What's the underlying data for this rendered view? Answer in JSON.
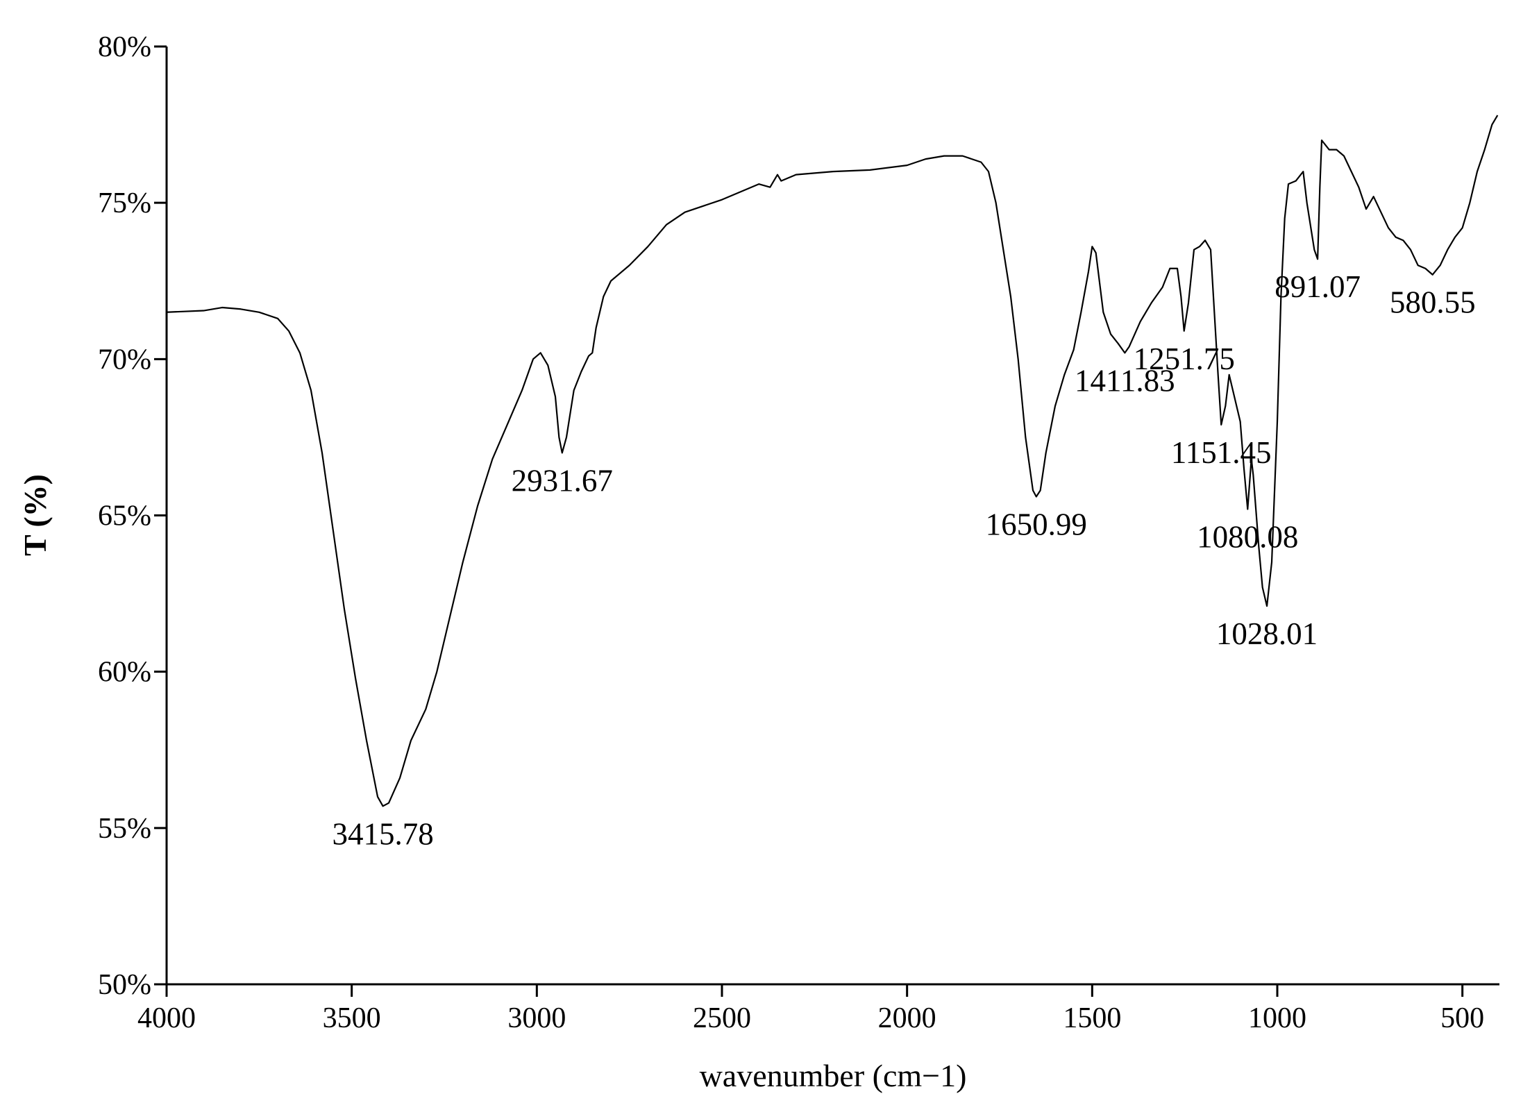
{
  "chart_data": {
    "type": "line",
    "xlabel": "wavenumber (cm−1)",
    "ylabel": "T (%)",
    "xlim": [
      4000,
      400
    ],
    "ylim": [
      50,
      80
    ],
    "xticks": [
      4000,
      3500,
      3000,
      2500,
      2000,
      1500,
      1000,
      500
    ],
    "yticks": [
      {
        "value": 50,
        "label": "50%"
      },
      {
        "value": 55,
        "label": "55%"
      },
      {
        "value": 60,
        "label": "60%"
      },
      {
        "value": 65,
        "label": "65%"
      },
      {
        "value": 70,
        "label": "70%"
      },
      {
        "value": 75,
        "label": "75%"
      },
      {
        "value": 80,
        "label": "80%"
      }
    ],
    "color": "#000000",
    "series": [
      {
        "x": [
          4000,
          3900,
          3850,
          3800,
          3750,
          3700,
          3670,
          3640,
          3610,
          3580,
          3550,
          3520,
          3490,
          3460,
          3430,
          3415.78,
          3400,
          3370,
          3340,
          3300,
          3270,
          3240,
          3200,
          3160,
          3120,
          3080,
          3040,
          3010,
          2990,
          2970,
          2950,
          2940,
          2931.67,
          2920,
          2900,
          2880,
          2860,
          2850,
          2840,
          2820,
          2800,
          2750,
          2700,
          2650,
          2600,
          2500,
          2400,
          2370,
          2350,
          2340,
          2300,
          2200,
          2100,
          2000,
          1950,
          1900,
          1850,
          1800,
          1780,
          1760,
          1740,
          1720,
          1700,
          1680,
          1660,
          1650.99,
          1640,
          1625,
          1600,
          1575,
          1550,
          1530,
          1510,
          1500,
          1490,
          1470,
          1450,
          1430,
          1411.83,
          1400,
          1370,
          1340,
          1310,
          1290,
          1270,
          1260,
          1251.75,
          1240,
          1225,
          1210,
          1195,
          1180,
          1170,
          1160,
          1151.45,
          1140,
          1130,
          1120,
          1100,
          1090,
          1080.08,
          1070,
          1065,
          1050,
          1040,
          1028.01,
          1015,
          1000,
          990,
          980,
          970,
          950,
          930,
          920,
          900,
          891.07,
          885,
          880,
          860,
          840,
          820,
          800,
          780,
          760,
          740,
          720,
          700,
          680,
          660,
          640,
          620,
          600,
          580.55,
          560,
          540,
          520,
          500,
          480,
          460,
          440,
          420,
          405
        ],
        "values": [
          71.5,
          71.55,
          71.65,
          71.6,
          71.5,
          71.3,
          70.9,
          70.2,
          69.0,
          67.0,
          64.5,
          62.0,
          59.8,
          57.8,
          56.0,
          55.7,
          55.8,
          56.6,
          57.8,
          58.8,
          60.0,
          61.5,
          63.5,
          65.3,
          66.8,
          67.9,
          69.0,
          70.0,
          70.2,
          69.8,
          68.8,
          67.5,
          67.0,
          67.5,
          69.0,
          69.6,
          70.1,
          70.2,
          71.0,
          72.0,
          72.5,
          73.0,
          73.6,
          74.3,
          74.7,
          75.1,
          75.6,
          75.5,
          75.9,
          75.7,
          75.9,
          76.0,
          76.05,
          76.2,
          76.4,
          76.5,
          76.5,
          76.3,
          76.0,
          75.0,
          73.5,
          72.0,
          70.0,
          67.5,
          65.8,
          65.6,
          65.8,
          67.0,
          68.5,
          69.5,
          70.3,
          71.5,
          72.8,
          73.6,
          73.4,
          71.5,
          70.8,
          70.5,
          70.2,
          70.4,
          71.2,
          71.8,
          72.3,
          72.9,
          72.9,
          72.0,
          70.9,
          71.8,
          73.5,
          73.6,
          73.8,
          73.5,
          71.5,
          69.5,
          67.9,
          68.5,
          69.5,
          69.0,
          68.0,
          66.5,
          65.2,
          66.8,
          66.3,
          64.0,
          62.7,
          62.1,
          63.5,
          68.0,
          72.0,
          74.5,
          75.6,
          75.7,
          76.0,
          75.0,
          73.5,
          73.2,
          75.5,
          77.0,
          76.7,
          76.7,
          76.5,
          76.0,
          75.5,
          74.8,
          75.2,
          74.7,
          74.2,
          73.9,
          73.8,
          73.5,
          73.0,
          72.9,
          72.7,
          73.0,
          73.5,
          73.9,
          74.2,
          75.0,
          76.0,
          76.7,
          77.5,
          77.8
        ]
      }
    ],
    "annotations": [
      {
        "text": "3415.78",
        "x": 3415.78,
        "y": 55.7
      },
      {
        "text": "2931.67",
        "x": 2931.67,
        "y": 67.0
      },
      {
        "text": "1650.99",
        "x": 1650.99,
        "y": 65.6
      },
      {
        "text": "1411.83",
        "x": 1411.83,
        "y": 70.2
      },
      {
        "text": "1251.75",
        "x": 1251.75,
        "y": 70.9
      },
      {
        "text": "1151.45",
        "x": 1151.45,
        "y": 67.9
      },
      {
        "text": "1080.08",
        "x": 1080.08,
        "y": 65.2
      },
      {
        "text": "1028.01",
        "x": 1028.01,
        "y": 62.1
      },
      {
        "text": "891.07",
        "x": 891.07,
        "y": 73.2
      },
      {
        "text": "580.55",
        "x": 580.55,
        "y": 72.7
      }
    ]
  }
}
